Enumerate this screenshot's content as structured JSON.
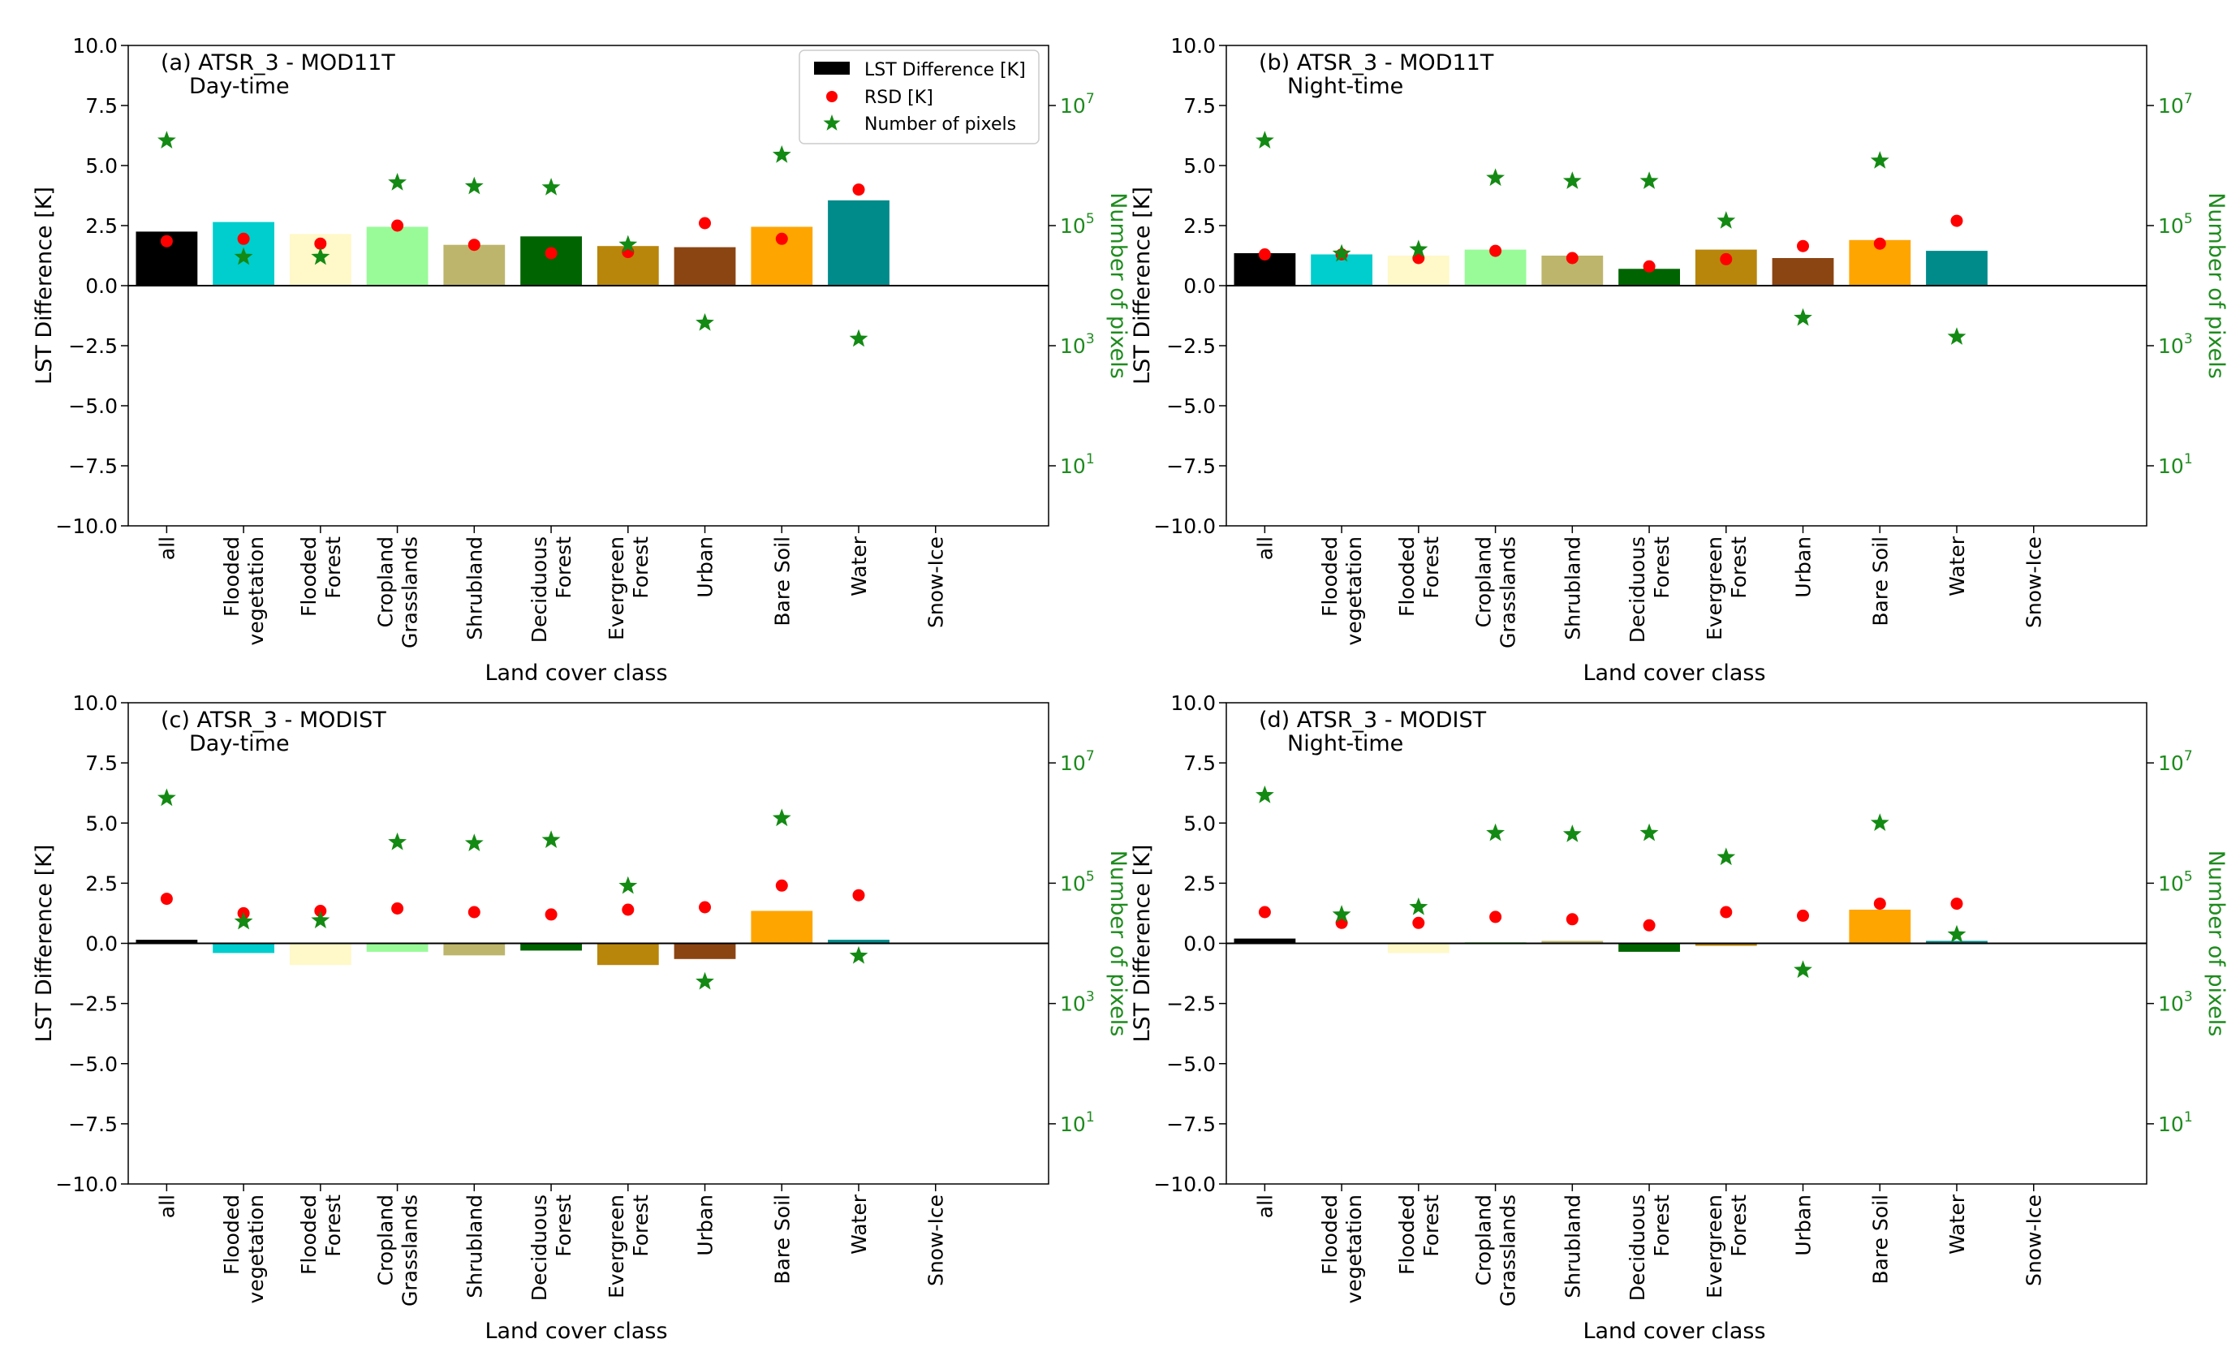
{
  "figure": {
    "categories": [
      "all",
      "Flooded\nvegetation",
      "Flooded\nForest",
      "Cropland\nGrasslands",
      "Shrubland",
      "Deciduous\nForest",
      "Evergreen\nForest",
      "Urban",
      "Bare Soil",
      "Water",
      "Snow-Ice"
    ],
    "colors": [
      "#000000",
      "#00cdcd",
      "#fff8c8",
      "#98fb98",
      "#bdb56b",
      "#006400",
      "#b8860b",
      "#8b4513",
      "#ffa500",
      "#008b8b",
      "#ffffff"
    ],
    "rsd_color": "#ff0000",
    "pixels_color": "#138a13",
    "legend": {
      "bar": "LST Difference [K]",
      "rsd": "RSD [K]",
      "pixels": "Number of pixels"
    }
  },
  "chart_data": [
    {
      "id": "a",
      "type": "bar",
      "title_line1": "(a) ATSR_3 - MOD11T",
      "title_line2": "Day-time",
      "xlabel": "Land cover class",
      "ylabel": "LST Difference [K]",
      "ylabel_right": "Number of pixels",
      "ylim": [
        -10,
        10
      ],
      "yticks": [
        10.0,
        7.5,
        5.0,
        2.5,
        0.0,
        -2.5,
        -5.0,
        -7.5,
        -10.0
      ],
      "ylim_right_log10": [
        0,
        8
      ],
      "values": [
        2.25,
        2.65,
        2.15,
        2.45,
        1.7,
        2.05,
        1.65,
        1.6,
        2.45,
        3.55,
        null
      ],
      "rsd": [
        1.85,
        1.95,
        1.75,
        2.5,
        1.7,
        1.35,
        1.4,
        2.6,
        1.95,
        4.0,
        null
      ],
      "pixels": [
        2600000,
        30000,
        30000,
        520000,
        450000,
        430000,
        48000,
        2400,
        1500000,
        1300,
        null
      ]
    },
    {
      "id": "b",
      "type": "bar",
      "title_line1": "(b) ATSR_3 - MOD11T",
      "title_line2": "Night-time",
      "xlabel": "Land cover class",
      "ylabel": "LST Difference [K]",
      "ylabel_right": "Number of pixels",
      "ylim": [
        -10,
        10
      ],
      "yticks": [
        10.0,
        7.5,
        5.0,
        2.5,
        0.0,
        -2.5,
        -5.0,
        -7.5,
        -10.0
      ],
      "ylim_right_log10": [
        0,
        8
      ],
      "values": [
        1.35,
        1.3,
        1.25,
        1.5,
        1.25,
        0.7,
        1.5,
        1.15,
        1.9,
        1.45,
        null
      ],
      "rsd": [
        1.3,
        1.3,
        1.15,
        1.45,
        1.15,
        0.8,
        1.1,
        1.65,
        1.75,
        2.7,
        null
      ],
      "pixels": [
        2600000,
        34000,
        40000,
        620000,
        550000,
        550000,
        120000,
        2900,
        1200000,
        1400,
        null
      ]
    },
    {
      "id": "c",
      "type": "bar",
      "title_line1": "(c) ATSR_3 - MODIST",
      "title_line2": "Day-time",
      "xlabel": "Land cover class",
      "ylabel": "LST Difference [K]",
      "ylabel_right": "Number of pixels",
      "ylim": [
        -10,
        10
      ],
      "yticks": [
        10.0,
        7.5,
        5.0,
        2.5,
        0.0,
        -2.5,
        -5.0,
        -7.5,
        -10.0
      ],
      "ylim_right_log10": [
        0,
        8
      ],
      "values": [
        0.15,
        -0.4,
        -0.9,
        -0.35,
        -0.5,
        -0.3,
        -0.9,
        -0.65,
        1.35,
        0.15,
        null
      ],
      "rsd": [
        1.85,
        1.25,
        1.35,
        1.45,
        1.3,
        1.2,
        1.4,
        1.5,
        2.4,
        2.0,
        null
      ],
      "pixels": [
        2600000,
        23000,
        24000,
        480000,
        460000,
        520000,
        90000,
        2300,
        1200000,
        6200,
        null
      ]
    },
    {
      "id": "d",
      "type": "bar",
      "title_line1": "(d) ATSR_3 - MODIST",
      "title_line2": "Night-time",
      "xlabel": "Land cover class",
      "ylabel": "LST Difference [K]",
      "ylabel_right": "Number of pixels",
      "ylim": [
        -10,
        10
      ],
      "yticks": [
        10.0,
        7.5,
        5.0,
        2.5,
        0.0,
        -2.5,
        -5.0,
        -7.5,
        -10.0
      ],
      "ylim_right_log10": [
        0,
        8
      ],
      "values": [
        0.2,
        0.0,
        -0.4,
        0.05,
        0.1,
        -0.35,
        -0.1,
        0.0,
        1.4,
        0.1,
        null
      ],
      "rsd": [
        1.3,
        0.85,
        0.85,
        1.1,
        1.0,
        0.75,
        1.3,
        1.15,
        1.65,
        1.65,
        null
      ],
      "pixels": [
        2900000,
        30000,
        40000,
        680000,
        650000,
        680000,
        270000,
        3600,
        1000000,
        14000,
        null
      ]
    }
  ]
}
